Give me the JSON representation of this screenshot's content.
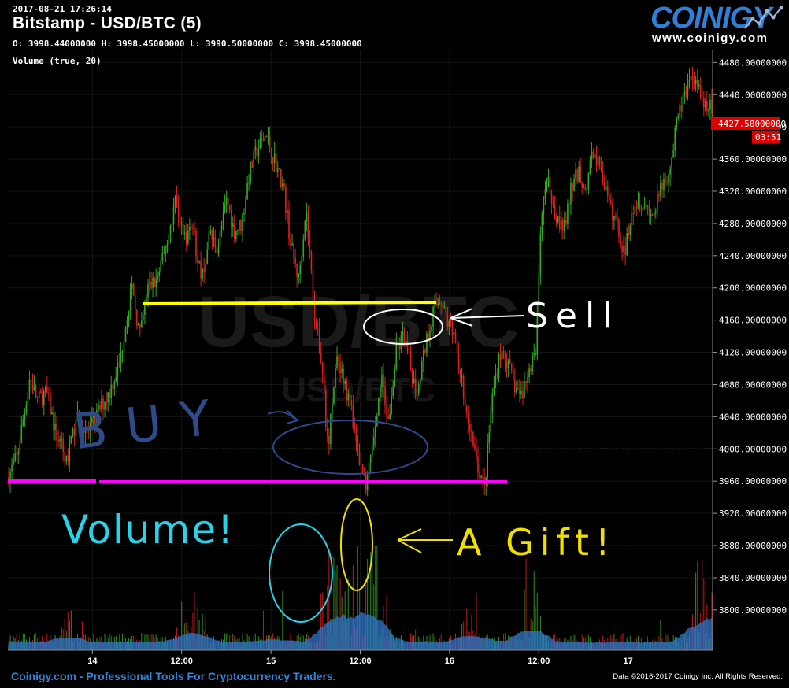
{
  "header": {
    "timestamp": "2017-08-21 17:26:14",
    "title": "Bitstamp - USD/BTC (5)",
    "ohlc": "O: 3998.44000000 H: 3998.45000000 L: 3990.50000000 C: 3998.45000000",
    "volume_label": "Volume (true, 20)"
  },
  "logo": {
    "word": "COINIGY",
    "url": "www.coinigy.com"
  },
  "footer": {
    "left": "Coinigy.com - Professional Tools For Cryptocurrency Traders.",
    "right": "Data ©2016-2017 Coinigy Inc. All Rights Reserved."
  },
  "watermark": {
    "pair": "USD/BTC",
    "exchange": "USD/BTC"
  },
  "chart_data": {
    "type": "candlestick",
    "exchange": "Bitstamp",
    "pair": "USD/BTC",
    "interval_minutes": 5,
    "y_ticks": [
      3800,
      3840,
      3880,
      3920,
      3960,
      4000,
      4040,
      4080,
      4120,
      4160,
      4200,
      4240,
      4280,
      4320,
      4360,
      4400,
      4440,
      4480
    ],
    "y_tick_labels": [
      "3800.00000000",
      "3840.00000000",
      "3880.00000000",
      "3920.00000000",
      "3960.00000000",
      "4000.00000000",
      "4040.00000000",
      "4080.00000000",
      "4120.00000000",
      "4160.00000000",
      "4200.00000000",
      "4240.00000000",
      "4280.00000000",
      "4320.00000000",
      "4360.00000000",
      "4400.00000000",
      "4440.00000000",
      "4480.00000000"
    ],
    "ylim": [
      3750,
      4495
    ],
    "x_ticks": [
      {
        "label": "14",
        "t": 0.125
      },
      {
        "label": "12:00",
        "t": 0.25
      },
      {
        "label": "15",
        "t": 0.375
      },
      {
        "label": "12:00",
        "t": 0.5
      },
      {
        "label": "16",
        "t": 0.625
      },
      {
        "label": "12:00",
        "t": 0.75
      },
      {
        "label": "17",
        "t": 0.875
      }
    ],
    "x_day_domain": [
      13.5,
      17.33
    ],
    "price_path": [
      [
        13.5,
        3965
      ],
      [
        13.55,
        3990
      ],
      [
        13.62,
        4090
      ],
      [
        13.66,
        4060
      ],
      [
        13.71,
        4070
      ],
      [
        13.76,
        4020
      ],
      [
        13.82,
        3985
      ],
      [
        13.88,
        4040
      ],
      [
        13.94,
        4020
      ],
      [
        14.0,
        4050
      ],
      [
        14.05,
        4070
      ],
      [
        14.11,
        4110
      ],
      [
        14.17,
        4200
      ],
      [
        14.22,
        4140
      ],
      [
        14.26,
        4200
      ],
      [
        14.31,
        4210
      ],
      [
        14.36,
        4250
      ],
      [
        14.41,
        4310
      ],
      [
        14.46,
        4260
      ],
      [
        14.5,
        4280
      ],
      [
        14.55,
        4210
      ],
      [
        14.6,
        4265
      ],
      [
        14.64,
        4250
      ],
      [
        14.69,
        4310
      ],
      [
        14.73,
        4270
      ],
      [
        14.77,
        4280
      ],
      [
        14.81,
        4340
      ],
      [
        14.85,
        4370
      ],
      [
        14.9,
        4390
      ],
      [
        14.95,
        4360
      ],
      [
        15.0,
        4320
      ],
      [
        15.04,
        4250
      ],
      [
        15.08,
        4210
      ],
      [
        15.12,
        4300
      ],
      [
        15.17,
        4160
      ],
      [
        15.21,
        4100
      ],
      [
        15.24,
        3995
      ],
      [
        15.28,
        4110
      ],
      [
        15.33,
        4080
      ],
      [
        15.37,
        4040
      ],
      [
        15.41,
        3980
      ],
      [
        15.45,
        3950
      ],
      [
        15.49,
        4020
      ],
      [
        15.53,
        4090
      ],
      [
        15.57,
        4030
      ],
      [
        15.61,
        4120
      ],
      [
        15.65,
        4140
      ],
      [
        15.69,
        4100
      ],
      [
        15.72,
        4070
      ],
      [
        15.77,
        4130
      ],
      [
        15.81,
        4170
      ],
      [
        15.85,
        4190
      ],
      [
        15.89,
        4160
      ],
      [
        15.93,
        4130
      ],
      [
        15.97,
        4080
      ],
      [
        16.0,
        4040
      ],
      [
        16.03,
        4000
      ],
      [
        16.06,
        3975
      ],
      [
        16.09,
        3950
      ],
      [
        16.13,
        4060
      ],
      [
        16.17,
        4120
      ],
      [
        16.21,
        4110
      ],
      [
        16.25,
        4080
      ],
      [
        16.29,
        4065
      ],
      [
        16.33,
        4100
      ],
      [
        16.37,
        4120
      ],
      [
        16.4,
        4300
      ],
      [
        16.44,
        4330
      ],
      [
        16.48,
        4290
      ],
      [
        16.52,
        4270
      ],
      [
        16.56,
        4320
      ],
      [
        16.6,
        4345
      ],
      [
        16.64,
        4320
      ],
      [
        16.68,
        4370
      ],
      [
        16.72,
        4350
      ],
      [
        16.77,
        4300
      ],
      [
        16.81,
        4280
      ],
      [
        16.85,
        4240
      ],
      [
        16.89,
        4300
      ],
      [
        16.93,
        4310
      ],
      [
        16.97,
        4300
      ],
      [
        17.01,
        4290
      ],
      [
        17.06,
        4330
      ],
      [
        17.1,
        4350
      ],
      [
        17.14,
        4410
      ],
      [
        17.18,
        4440
      ],
      [
        17.22,
        4455
      ],
      [
        17.26,
        4440
      ],
      [
        17.3,
        4425
      ]
    ],
    "current_price": 4427.5,
    "current_price_label": "4427.50000000",
    "countdown": "03:51",
    "reference_line": 4000,
    "volume_series": "Volume (true, 20)",
    "colors": {
      "up": "#33aa22",
      "down": "#e02020",
      "volume": "#2f77c9",
      "axis_text": "#ffffff",
      "price_tag": "#e00000"
    }
  },
  "annotations": {
    "buy": "BUY",
    "sell": "Sell",
    "volume": "Volume!",
    "gift": "A Gift!",
    "colors": {
      "sell_line": "#ffff00",
      "buy_line": "#ff00ff",
      "buy_text": "#2e4a8a",
      "volume_text": "#27d3e8",
      "gift_text": "#f0e000",
      "sell_text": "#ffffff"
    }
  }
}
